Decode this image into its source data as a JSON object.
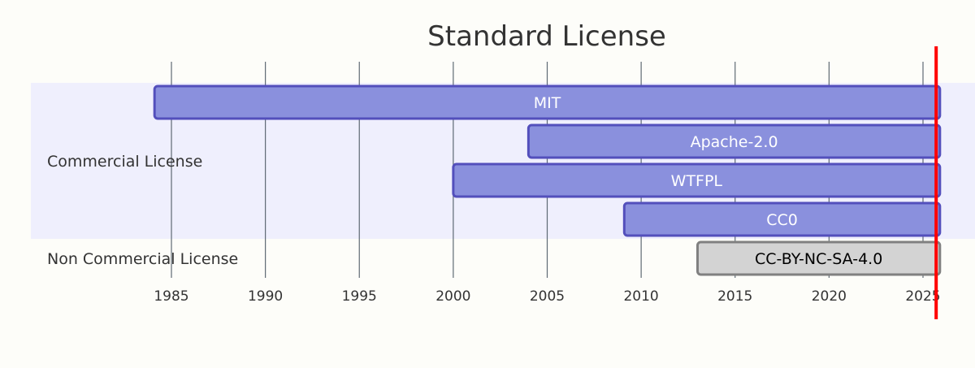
{
  "chart_data": {
    "type": "gantt",
    "title": "Standard License",
    "x_ticks": [
      "1985",
      "1990",
      "1995",
      "2000",
      "2005",
      "2010",
      "2015",
      "2020",
      "2025"
    ],
    "x_range": [
      1980,
      2028
    ],
    "today_marker": 2025.7,
    "sections": [
      {
        "name": "Commercial License",
        "tasks": [
          "MIT",
          "Apache-2.0",
          "WTFPL",
          "CC0"
        ]
      },
      {
        "name": "Non Commercial License",
        "tasks": [
          "CC-BY-NC-SA-4.0"
        ]
      }
    ],
    "tasks": [
      {
        "name": "MIT",
        "start": 1984.1,
        "end": 2025.9,
        "section": "Commercial License",
        "status": "active"
      },
      {
        "name": "Apache-2.0",
        "start": 2004.0,
        "end": 2025.9,
        "section": "Commercial License",
        "status": "active"
      },
      {
        "name": "WTFPL",
        "start": 2000.0,
        "end": 2025.9,
        "section": "Commercial License",
        "status": "active"
      },
      {
        "name": "CC0",
        "start": 2009.1,
        "end": 2025.9,
        "section": "Commercial License",
        "status": "active"
      },
      {
        "name": "CC-BY-NC-SA-4.0",
        "start": 2013.0,
        "end": 2025.9,
        "section": "Non Commercial License",
        "status": "done"
      }
    ],
    "colors": {
      "active_fill": "#8a90dd",
      "active_stroke": "#534fbc",
      "active_text": "#ffffff",
      "done_fill": "#d3d3d3",
      "done_stroke": "#808080",
      "done_text": "#000000",
      "section_band": "#efeffd",
      "grid": "#4f5b66",
      "today": "#ff0000"
    }
  }
}
